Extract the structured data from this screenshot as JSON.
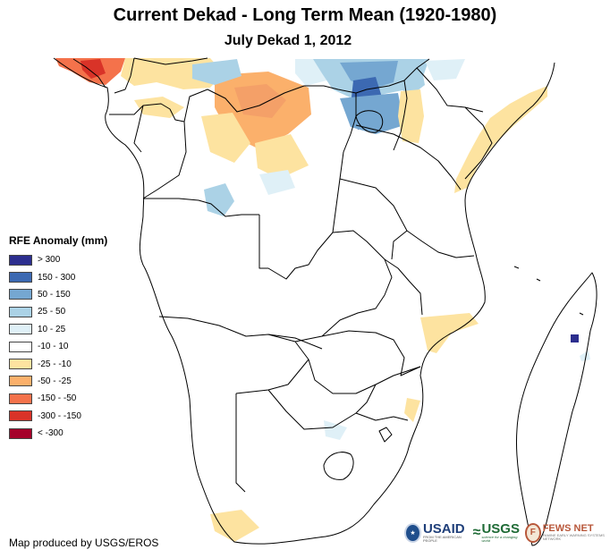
{
  "title": "Current Dekad - Long Term Mean (1920-1980)",
  "subtitle": "July Dekad 1, 2012",
  "legend": {
    "title": "RFE Anomaly (mm)",
    "items": [
      {
        "label": "> 300",
        "color": "#2c2e8e"
      },
      {
        "label": "150 - 300",
        "color": "#3c69b2"
      },
      {
        "label": "50 - 150",
        "color": "#75a7d1"
      },
      {
        "label": "25 - 50",
        "color": "#abd2e6"
      },
      {
        "label": "10 - 25",
        "color": "#dff0f7"
      },
      {
        "label": "-10 - 10",
        "color": "#ffffff"
      },
      {
        "label": "-25 - -10",
        "color": "#fde3a0"
      },
      {
        "label": "-50 - -25",
        "color": "#fbb06b"
      },
      {
        "label": "-150 - -50",
        "color": "#f4724b"
      },
      {
        "label": "-300 - -150",
        "color": "#d93328"
      },
      {
        "label": "< -300",
        "color": "#a5002a"
      }
    ]
  },
  "credit": "Map produced by USGS/EROS",
  "logos": {
    "usaid": {
      "name": "USAID",
      "tagline": "FROM THE AMERICAN PEOPLE"
    },
    "usgs": {
      "mark": "≈",
      "name": "USGS",
      "tagline": "science for a changing world"
    },
    "fews": {
      "mark": "F",
      "name": "FEWS NET",
      "tagline": "FAMINE EARLY WARNING SYSTEMS NETWORK"
    }
  }
}
